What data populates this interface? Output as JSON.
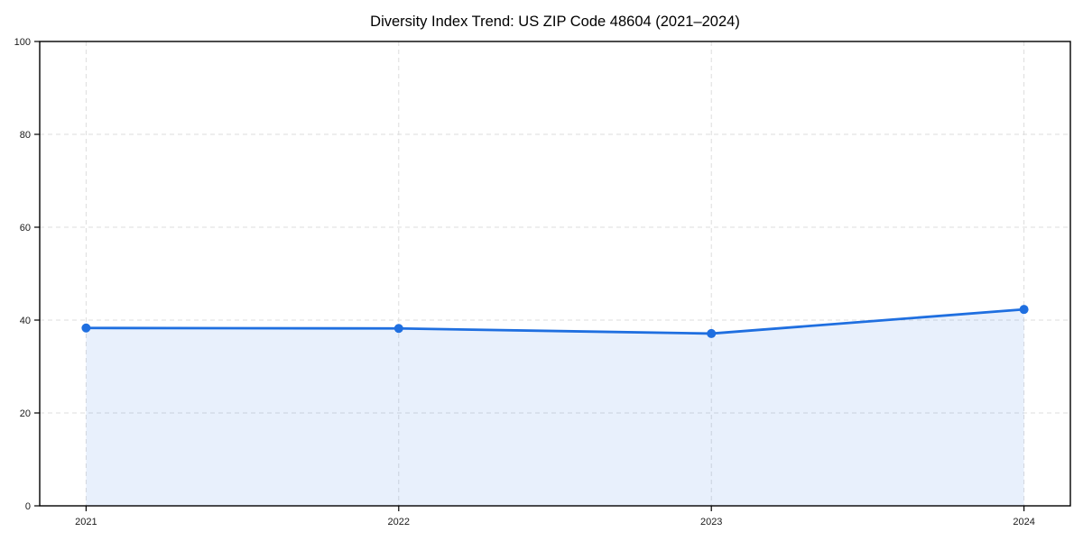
{
  "chart_data": {
    "type": "line",
    "title": "Diversity Index Trend: US ZIP Code 48604 (2021–2024)",
    "categories": [
      "2021",
      "2022",
      "2023",
      "2024"
    ],
    "series": [
      {
        "name": "Diversity Index",
        "values": [
          38.3,
          38.2,
          37.1,
          42.3
        ]
      }
    ],
    "xlabel": "",
    "ylabel": "",
    "ylim": [
      0,
      100
    ],
    "yticks": [
      0,
      20,
      40,
      60,
      80,
      100
    ],
    "grid": {
      "show": true,
      "style": "dashed",
      "axes": "both",
      "color": "#dddddd"
    },
    "legend_position": "none",
    "area_fill": true,
    "colors": {
      "line": "#1f6fe0",
      "marker": "#1f6fe0",
      "fill": "rgba(31,111,224,0.10)",
      "axis": "#000000",
      "text": "#1a1a1a"
    }
  }
}
